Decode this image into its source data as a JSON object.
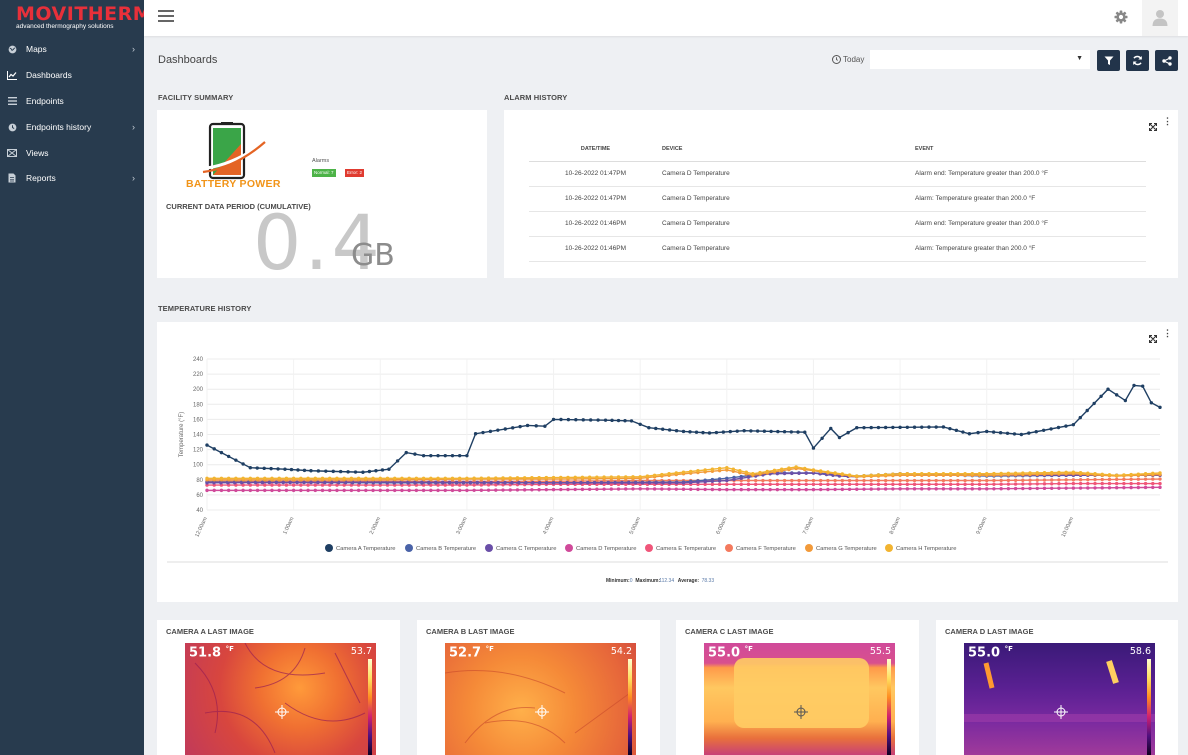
{
  "app": {
    "logo_main": "MOVITHERM",
    "logo_sub": "advanced thermography solutions"
  },
  "sidebar": {
    "items": [
      {
        "label": "Maps",
        "icon": "globe-icon",
        "has_children": true
      },
      {
        "label": "Dashboards",
        "icon": "chart-icon",
        "active": true
      },
      {
        "label": "Endpoints",
        "icon": "list-icon"
      },
      {
        "label": "Endpoints history",
        "icon": "history-icon",
        "has_children": true
      },
      {
        "label": "Views",
        "icon": "views-icon"
      },
      {
        "label": "Reports",
        "icon": "file-icon",
        "has_children": true
      }
    ]
  },
  "header": {
    "page_title": "Dashboards",
    "range_label": "Today",
    "dropdown_value": ""
  },
  "facility": {
    "section_title": "FACILITY SUMMARY",
    "brand": "BATTERY POWER",
    "alarms_label": "Alarms",
    "normal_badge": "Normal: 7",
    "error_badge": "Error: 2",
    "data_period_label": "CURRENT DATA PERIOD (CUMULATIVE)",
    "data_value": "0.4",
    "data_unit": "GB"
  },
  "alarm_history": {
    "section_title": "ALARM HISTORY",
    "columns": [
      "DATE/TIME",
      "DEVICE",
      "EVENT"
    ],
    "rows": [
      [
        "10-26-2022 01:47PM",
        "Camera D Temperature",
        "Alarm end: Temperature greater than 200.0 °F"
      ],
      [
        "10-26-2022 01:47PM",
        "Camera D Temperature",
        "Alarm: Temperature greater than 200.0 °F"
      ],
      [
        "10-26-2022 01:46PM",
        "Camera D Temperature",
        "Alarm end: Temperature greater than 200.0 °F"
      ],
      [
        "10-26-2022 01:46PM",
        "Camera D Temperature",
        "Alarm: Temperature greater than 200.0 °F"
      ]
    ]
  },
  "temperature_history": {
    "section_title": "TEMPERATURE HISTORY",
    "stats": {
      "min_label": "Minimum:",
      "min": "0",
      "max_label": "Maximum:",
      "max": "112.34",
      "avg_label": "Average:",
      "avg": "78.33"
    }
  },
  "chart_data": {
    "type": "line",
    "title": "",
    "xlabel": "",
    "ylabel": "Temperature (°F)",
    "ylim": [
      40,
      240
    ],
    "yticks": [
      40,
      60,
      80,
      100,
      120,
      140,
      160,
      180,
      200,
      220,
      240
    ],
    "xticks": [
      "12:00am",
      "1:00am",
      "2:00am",
      "3:00am",
      "4:00am",
      "5:00am",
      "6:00am",
      "7:00am",
      "8:00am",
      "9:00am",
      "10:00am"
    ],
    "x_hours_range": [
      0,
      11
    ],
    "grid": true,
    "legend_position": "bottom",
    "series": [
      {
        "name": "Camera A Temperature",
        "color": "#1f3f63",
        "x": [
          0,
          0.5,
          0.9,
          1.2,
          1.8,
          2.1,
          2.3,
          2.5,
          3.0,
          3.1,
          3.7,
          3.9,
          4.0,
          4.6,
          4.9,
          5.1,
          5.5,
          5.8,
          6.2,
          6.9,
          7.0,
          7.2,
          7.3,
          7.5,
          8.5,
          8.8,
          9.0,
          9.4,
          10.0,
          10.4,
          10.6,
          10.7,
          10.8,
          10.9,
          11.0
        ],
        "y": [
          126,
          96,
          94,
          92,
          90,
          94,
          116,
          112,
          112,
          141,
          152,
          151,
          160,
          159,
          158,
          149,
          144,
          142,
          145,
          143,
          122,
          148,
          136,
          149,
          150,
          141,
          144,
          140,
          153,
          200,
          185,
          205,
          204,
          182,
          176
        ]
      },
      {
        "name": "Camera B Temperature",
        "color": "#4a63a8",
        "x": [
          0,
          2,
          4,
          5.5,
          6.0,
          6.5,
          7.0,
          7.5,
          8.0,
          9.0,
          10.0,
          11.0
        ],
        "y": [
          77,
          76,
          76,
          77,
          82,
          89,
          89,
          85,
          88,
          85,
          86,
          86
        ]
      },
      {
        "name": "Camera C Temperature",
        "color": "#6a4fa8",
        "x": [
          0,
          2,
          4,
          5.5,
          6.0,
          6.5,
          7.0,
          7.3,
          7.5,
          8.0,
          9.0,
          10.0,
          11.0
        ],
        "y": [
          76,
          77,
          76,
          76,
          79,
          88,
          89,
          85,
          84,
          88,
          86,
          86,
          86
        ]
      },
      {
        "name": "Camera D Temperature",
        "color": "#d04a9a",
        "x": [
          0,
          1,
          2,
          3,
          4,
          5,
          6,
          7,
          8,
          9,
          10,
          11
        ],
        "y": [
          66,
          66,
          66,
          66,
          67,
          68,
          67,
          67,
          68,
          68,
          69,
          70
        ]
      },
      {
        "name": "Camera E Temperature",
        "color": "#f0567a",
        "x": [
          0,
          1,
          2,
          3,
          4,
          5,
          6,
          7,
          8,
          9,
          10,
          11
        ],
        "y": [
          73,
          73,
          73,
          73,
          74,
          74,
          74,
          74,
          74,
          74,
          75,
          75
        ]
      },
      {
        "name": "Camera F Temperature",
        "color": "#f47a5e",
        "x": [
          0,
          1,
          2,
          3,
          4,
          5,
          6,
          7,
          8,
          9,
          10,
          11
        ],
        "y": [
          78,
          78,
          78,
          78,
          78,
          79,
          79,
          79,
          79,
          79,
          80,
          81
        ]
      },
      {
        "name": "Camera G Temperature",
        "color": "#f29a3a",
        "x": [
          0,
          1,
          2,
          3,
          4,
          5,
          5.5,
          6.0,
          6.3,
          6.8,
          7.0,
          7.5,
          8.0,
          9.0,
          10.0,
          10.5,
          11.0
        ],
        "y": [
          80,
          80,
          80,
          81,
          81,
          82,
          88,
          93,
          86,
          95,
          92,
          84,
          86,
          86,
          88,
          85,
          87
        ]
      },
      {
        "name": "Camera H Temperature",
        "color": "#f2b431",
        "x": [
          0,
          1,
          2,
          3,
          4,
          5,
          5.5,
          6.0,
          6.3,
          6.8,
          7.0,
          7.5,
          8.0,
          9.0,
          10.0,
          10.5,
          11.0
        ],
        "y": [
          82,
          82,
          82,
          82,
          83,
          84,
          90,
          96,
          88,
          97,
          93,
          85,
          88,
          88,
          90,
          86,
          89
        ]
      }
    ]
  },
  "cameras": [
    {
      "title": "CAMERA A LAST IMAGE",
      "reading": "51.8",
      "unit": "°F",
      "max": "53.7",
      "palette": "a"
    },
    {
      "title": "CAMERA B LAST IMAGE",
      "reading": "52.7",
      "unit": "°F",
      "max": "54.2",
      "palette": "b"
    },
    {
      "title": "CAMERA C LAST IMAGE",
      "reading": "55.0",
      "unit": "°F",
      "max": "55.5",
      "palette": "c"
    },
    {
      "title": "CAMERA D LAST IMAGE",
      "reading": "55.0",
      "unit": "°F",
      "max": "58.6",
      "palette": "d"
    }
  ]
}
